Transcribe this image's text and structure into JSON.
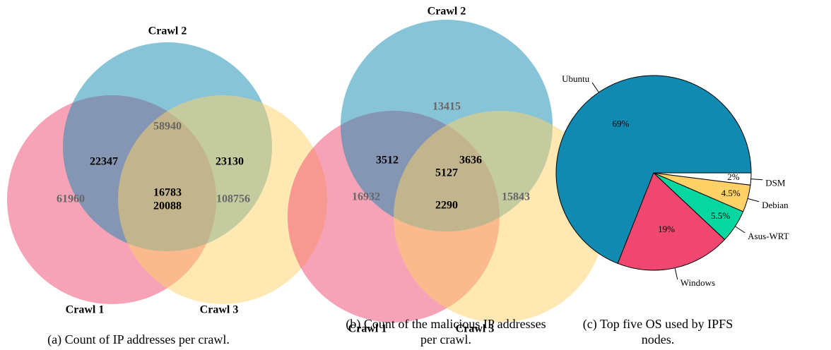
{
  "chart_data": [
    {
      "type": "venn",
      "caption": "(a) Count of IP addresses per crawl.",
      "sets": [
        {
          "name": "Crawl 1",
          "color": "#ef476f"
        },
        {
          "name": "Crawl 2",
          "color": "#118ab2"
        },
        {
          "name": "Crawl 3",
          "color": "#ffd166"
        }
      ],
      "values": [
        61960,
        58940,
        108756,
        22347,
        20088,
        23130,
        16783
      ]
    },
    {
      "type": "venn",
      "caption": "(b) Count of the malicious IP addresses per crawl.",
      "sets": [
        {
          "name": "Crawl 1",
          "color": "#ef476f"
        },
        {
          "name": "Crawl 2",
          "color": "#118ab2"
        },
        {
          "name": "Crawl 3",
          "color": "#ffd166"
        }
      ],
      "values": [
        16932,
        13415,
        15843,
        3512,
        2290,
        3636,
        5127
      ]
    },
    {
      "type": "pie",
      "caption": "(c) Top five OS used by IPFS nodes.",
      "categories": [
        "Ubuntu",
        "Windows",
        "Asus-WRT",
        "Debian",
        "DSM"
      ],
      "values": [
        69,
        19,
        5.5,
        4.5,
        2
      ],
      "value_labels": [
        "69%",
        "19%",
        "5.5%",
        "4.5%",
        "2%"
      ],
      "colors": [
        "#118ab2",
        "#ef476f",
        "#06d6a0",
        "#ffd166",
        "#ffffff"
      ]
    }
  ]
}
